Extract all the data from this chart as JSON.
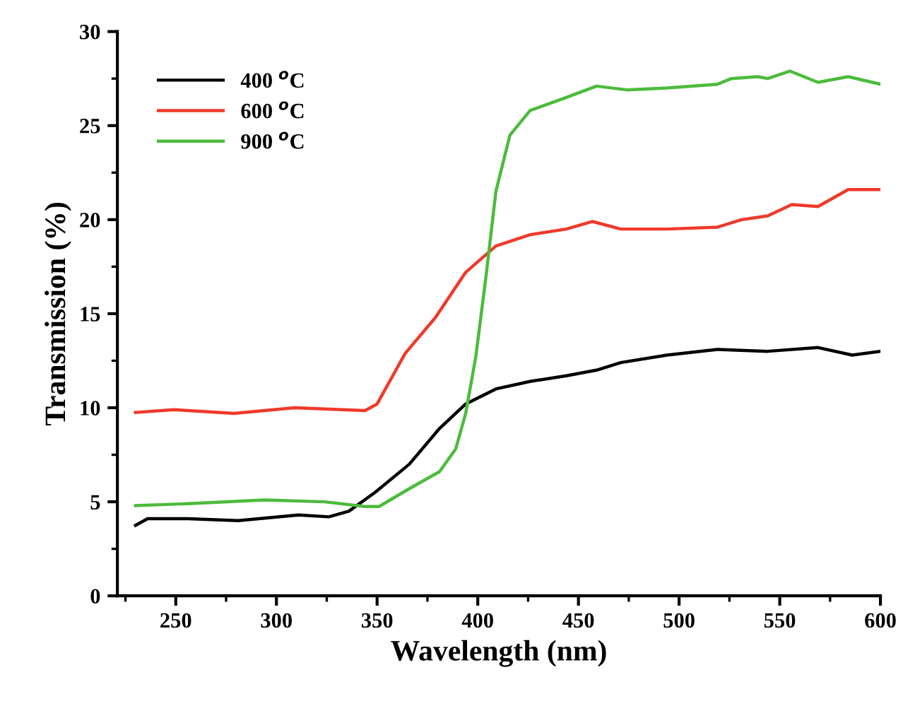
{
  "chart_data": {
    "type": "line",
    "xlabel": "Wavelength (nm)",
    "ylabel": "Transmission (%)",
    "xlim": [
      221,
      600
    ],
    "xticks": [
      250,
      300,
      350,
      400,
      450,
      500,
      550,
      600
    ],
    "ylim": [
      0,
      30
    ],
    "yticks": [
      0,
      5,
      10,
      15,
      20,
      25,
      30
    ],
    "grid": false,
    "legend": "top left",
    "series": [
      {
        "name": "400 $^{o}$C",
        "color": "#000000",
        "x": [
          230,
          236,
          256,
          281,
          311,
          326,
          336,
          349,
          366,
          381,
          394,
          409,
          426,
          444,
          459,
          471,
          494,
          519,
          544,
          569,
          586,
          600
        ],
        "values": [
          3.75,
          4.1,
          4.1,
          4.0,
          4.3,
          4.2,
          4.5,
          5.5,
          7.0,
          8.9,
          10.2,
          11.0,
          11.4,
          11.7,
          12.0,
          12.4,
          12.8,
          13.1,
          13.0,
          13.2,
          12.8,
          13.0
        ]
      },
      {
        "name": "600 $^{o}$C",
        "color": "#ee3a2a",
        "x": [
          230,
          249,
          279,
          309,
          344,
          350,
          364,
          379,
          394,
          409,
          426,
          444,
          457,
          471,
          494,
          519,
          531,
          544,
          556,
          569,
          584,
          600
        ],
        "values": [
          9.75,
          9.9,
          9.7,
          10.0,
          9.85,
          10.2,
          12.9,
          14.8,
          17.2,
          18.6,
          19.2,
          19.5,
          19.9,
          19.5,
          19.5,
          19.6,
          20.0,
          20.2,
          20.8,
          20.7,
          21.6,
          21.6
        ]
      },
      {
        "name": "900 $^{o}$C",
        "color": "#4cbb3c",
        "x": [
          230,
          256,
          294,
          324,
          344,
          351,
          366,
          381,
          389,
          394,
          399,
          404,
          409,
          416,
          426,
          444,
          459,
          474,
          494,
          519,
          526,
          539,
          544,
          555,
          569,
          584,
          600
        ],
        "values": [
          4.8,
          4.9,
          5.1,
          5.0,
          4.75,
          4.75,
          5.7,
          6.6,
          7.8,
          9.7,
          12.7,
          16.9,
          21.5,
          24.5,
          25.8,
          26.5,
          27.1,
          26.9,
          27.0,
          27.2,
          27.5,
          27.6,
          27.5,
          27.9,
          27.3,
          27.6,
          27.2
        ]
      }
    ]
  }
}
